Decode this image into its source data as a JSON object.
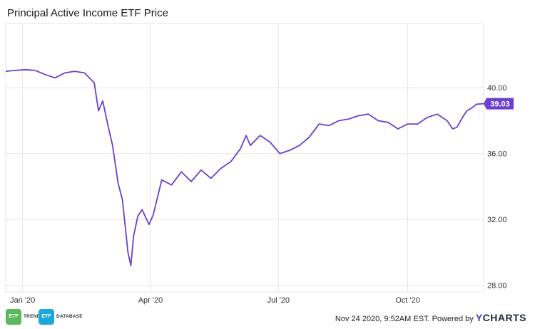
{
  "title": "Principal Active Income ETF Price",
  "footer": {
    "timestamp": "Nov 24 2020, 9:52AM EST.",
    "powered_by": "Powered by",
    "brand_y": "Y",
    "brand_rest": "CHARTS",
    "logo1_mark": "ETF",
    "logo1_label": "TRENDS",
    "logo2_mark": "ETF",
    "logo2_label": "DATABASE"
  },
  "colors": {
    "series": "#6a3fd1",
    "badge_bg": "#6a3fd1",
    "grid": "#e6e6e6",
    "logo_trends": "#5cb85c",
    "logo_database": "#1ca8dd"
  },
  "chart_data": {
    "type": "line",
    "title": "Principal Active Income ETF Price",
    "xlabel": "",
    "ylabel": "",
    "x_tick_labels": [
      "Jan '20",
      "Apr '20",
      "Jul '20",
      "Oct '20"
    ],
    "x_tick_dates": [
      "2020-01-01",
      "2020-04-01",
      "2020-07-01",
      "2020-10-01"
    ],
    "xlim": [
      "2019-12-20",
      "2020-11-24"
    ],
    "y_tick_labels": [
      "28.00",
      "32.00",
      "36.00",
      "40.00"
    ],
    "yticks": [
      28,
      32,
      36,
      40
    ],
    "ylim": [
      27.6,
      43.9
    ],
    "grid": true,
    "last_value_label": "39.03",
    "series": [
      {
        "name": "",
        "x": [
          "2019-12-20",
          "2019-12-27",
          "2020-01-03",
          "2020-01-10",
          "2020-01-17",
          "2020-01-24",
          "2020-01-31",
          "2020-02-07",
          "2020-02-14",
          "2020-02-21",
          "2020-02-24",
          "2020-02-27",
          "2020-03-02",
          "2020-03-05",
          "2020-03-09",
          "2020-03-12",
          "2020-03-16",
          "2020-03-18",
          "2020-03-20",
          "2020-03-23",
          "2020-03-26",
          "2020-03-31",
          "2020-04-03",
          "2020-04-09",
          "2020-04-16",
          "2020-04-23",
          "2020-04-30",
          "2020-05-07",
          "2020-05-14",
          "2020-05-21",
          "2020-05-28",
          "2020-06-04",
          "2020-06-08",
          "2020-06-11",
          "2020-06-18",
          "2020-06-25",
          "2020-07-02",
          "2020-07-09",
          "2020-07-16",
          "2020-07-23",
          "2020-07-30",
          "2020-08-06",
          "2020-08-13",
          "2020-08-20",
          "2020-08-27",
          "2020-09-03",
          "2020-09-10",
          "2020-09-17",
          "2020-09-24",
          "2020-10-01",
          "2020-10-08",
          "2020-10-15",
          "2020-10-22",
          "2020-10-29",
          "2020-11-02",
          "2020-11-05",
          "2020-11-09",
          "2020-11-12",
          "2020-11-16",
          "2020-11-19",
          "2020-11-24"
        ],
        "y": [
          41.0,
          41.05,
          41.1,
          41.05,
          40.8,
          40.6,
          40.9,
          41.0,
          40.9,
          40.3,
          38.6,
          39.2,
          37.6,
          36.5,
          34.2,
          33.2,
          30.0,
          29.2,
          31.0,
          32.2,
          32.6,
          31.7,
          32.3,
          34.4,
          34.1,
          34.9,
          34.3,
          35.0,
          34.5,
          35.1,
          35.5,
          36.3,
          37.1,
          36.5,
          37.1,
          36.7,
          36.0,
          36.2,
          36.5,
          37.0,
          37.8,
          37.7,
          38.0,
          38.1,
          38.3,
          38.4,
          38.0,
          37.9,
          37.5,
          37.8,
          37.8,
          38.2,
          38.4,
          38.0,
          37.5,
          37.6,
          38.2,
          38.6,
          38.8,
          39.0,
          39.03
        ]
      }
    ]
  }
}
